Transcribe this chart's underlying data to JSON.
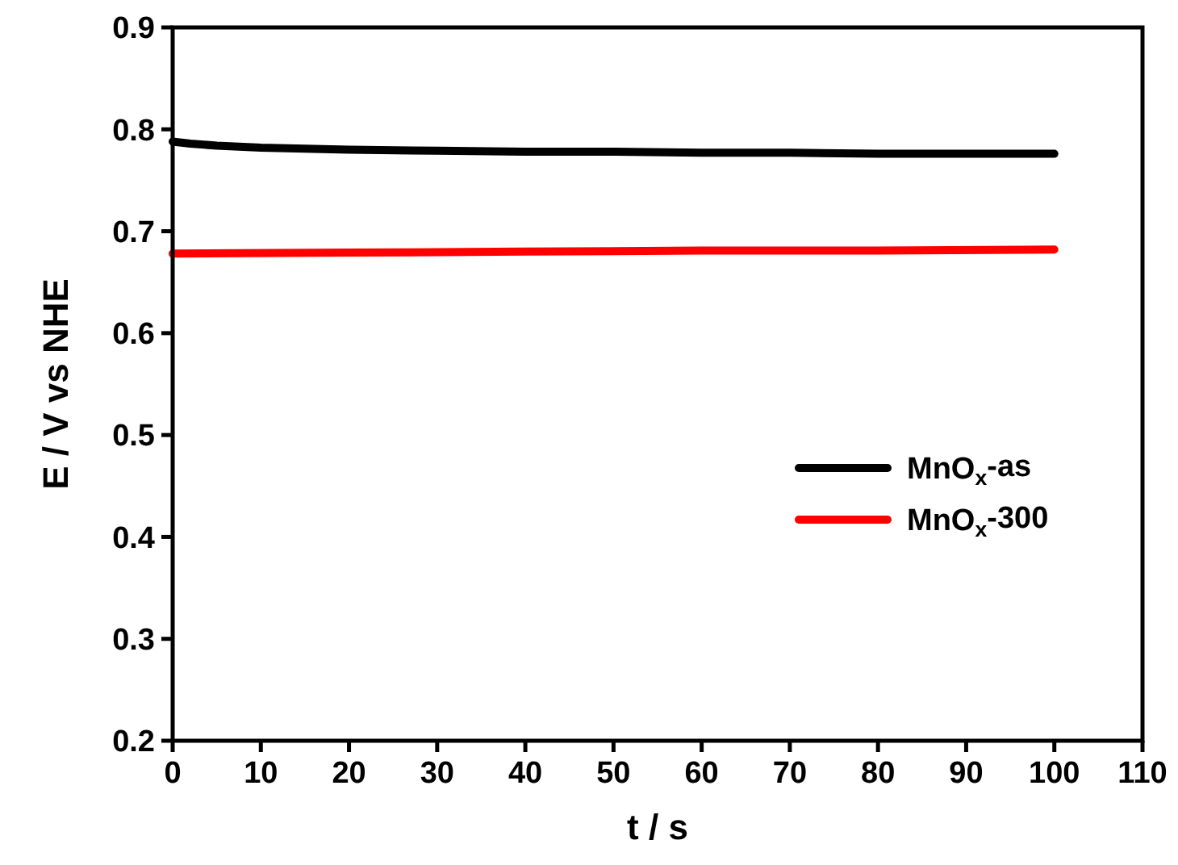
{
  "chart_data": {
    "type": "line",
    "xlabel": "t / s",
    "ylabel": "E / V vs NHE",
    "xlim": [
      0,
      110
    ],
    "ylim": [
      0.2,
      0.9
    ],
    "xticks": [
      0,
      10,
      20,
      30,
      40,
      50,
      60,
      70,
      80,
      90,
      100,
      110
    ],
    "yticks": [
      0.2,
      0.3,
      0.4,
      0.5,
      0.6,
      0.7,
      0.8,
      0.9
    ],
    "legend": "right",
    "grid": false,
    "marker": "none",
    "line_style": "solid",
    "series": [
      {
        "name": "MnO$_{x}$-as",
        "color": "#000000",
        "x": [
          0,
          2,
          5,
          10,
          15,
          20,
          30,
          40,
          50,
          60,
          70,
          80,
          90,
          100
        ],
        "values": [
          0.788,
          0.786,
          0.784,
          0.782,
          0.781,
          0.78,
          0.779,
          0.778,
          0.778,
          0.777,
          0.777,
          0.776,
          0.776,
          0.776
        ]
      },
      {
        "name": "MnO$_{x}$-300",
        "color": "#ff0000",
        "x": [
          0,
          20,
          40,
          60,
          80,
          100
        ],
        "values": [
          0.678,
          0.679,
          0.68,
          0.681,
          0.681,
          0.682
        ]
      }
    ]
  }
}
